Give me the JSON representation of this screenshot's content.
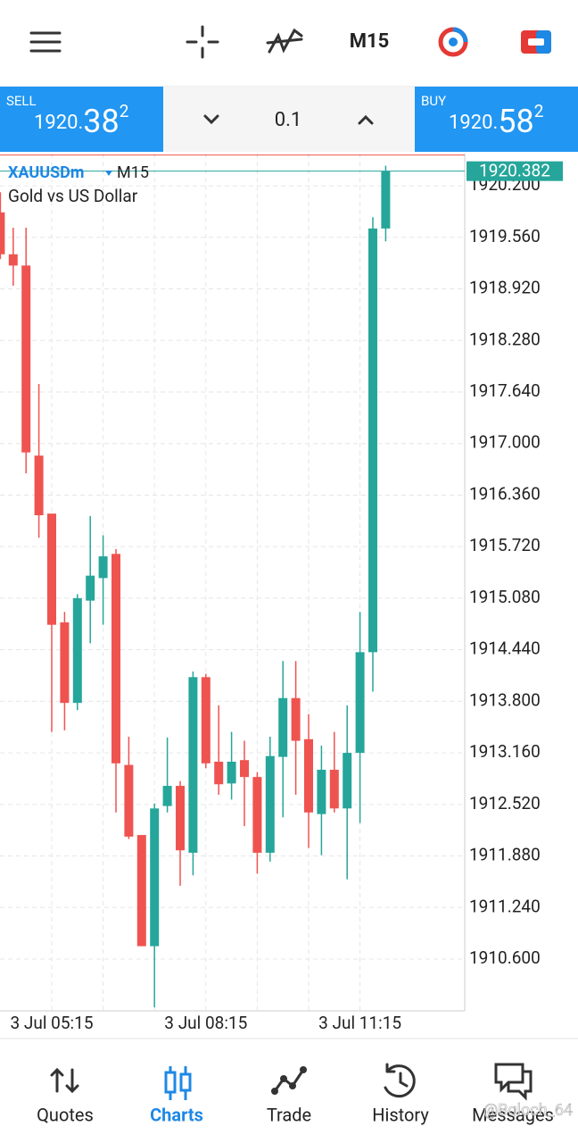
{
  "header": {
    "timeframe": "M15"
  },
  "trade_bar": {
    "sell": {
      "label": "SELL",
      "price_head": "1920.",
      "price_big": "38",
      "price_sup": "2"
    },
    "volume": "0.1",
    "buy": {
      "label": "BUY",
      "price_head": "1920.",
      "price_big": "58",
      "price_sup": "2"
    }
  },
  "chart_data": {
    "type": "candlestick",
    "symbol": "XAUUSDm",
    "timeframe": "M15",
    "description": "Gold vs US Dollar",
    "categories": [
      null,
      null,
      null,
      null,
      "3 Jul 05:15",
      null,
      null,
      null,
      null,
      null,
      null,
      null,
      null,
      null,
      null,
      null,
      "3 Jul 08:15",
      null,
      null,
      null,
      null,
      null,
      null,
      null,
      null,
      null,
      null,
      null,
      "3 Jul 11:15",
      null,
      null
    ],
    "open": [
      1919.87,
      1919.35,
      1919.21,
      1916.85,
      1916.13,
      1914.78,
      1913.78,
      1915.05,
      1915.33,
      1915.63,
      1913.01,
      1912.14,
      1910.76,
      1912.5,
      1912.75,
      1911.92,
      1914.1,
      1913.05,
      1912.78,
      1913.07,
      1912.86,
      1911.92,
      1913.11,
      1913.84,
      1913.33,
      1912.4,
      1912.95,
      1912.47,
      1913.16,
      1914.41,
      1919.67
    ],
    "high": [
      1920.12,
      1919.68,
      1919.68,
      1917.74,
      1916.13,
      1914.91,
      1915.13,
      1916.1,
      1915.86,
      1915.69,
      1913.36,
      1912.14,
      1912.53,
      1913.35,
      1912.81,
      1914.17,
      1914.14,
      1913.75,
      1913.42,
      1913.31,
      1912.92,
      1913.36,
      1914.3,
      1914.3,
      1913.64,
      1913.25,
      1913.42,
      1913.75,
      1914.91,
      1919.81,
      1920.45
    ],
    "low": [
      1919.29,
      1918.96,
      1916.63,
      1915.83,
      1913.42,
      1913.44,
      1913.69,
      1914.52,
      1914.75,
      1912.42,
      1912.09,
      1910.76,
      1910.0,
      1912.42,
      1911.51,
      1911.64,
      1912.97,
      1912.64,
      1912.58,
      1912.25,
      1911.66,
      1911.81,
      1912.36,
      1912.64,
      1911.98,
      1911.89,
      1912.42,
      1911.59,
      1912.29,
      1913.92,
      1919.51
    ],
    "close": [
      1919.35,
      1919.21,
      1916.89,
      1916.11,
      1914.75,
      1913.78,
      1915.08,
      1915.36,
      1915.6,
      1913.03,
      1912.12,
      1910.76,
      1912.47,
      1912.75,
      1911.95,
      1914.1,
      1913.03,
      1912.77,
      1913.05,
      1912.86,
      1911.92,
      1913.12,
      1913.84,
      1913.31,
      1912.42,
      1912.95,
      1912.47,
      1913.16,
      1914.41,
      1919.67,
      1920.382
    ],
    "up_color": "#26a69a",
    "down_color": "#ef5350",
    "bid": 1920.382,
    "bid_color": "#26a69a",
    "ask": 1920.582,
    "ask_color": "#ef5350",
    "ylim": [
      1909.957,
      1920.6
    ],
    "yticks": [
      {
        "value": 1910.6,
        "label": "1910.600"
      },
      {
        "value": 1911.24,
        "label": "1911.240"
      },
      {
        "value": 1911.88,
        "label": "1911.880"
      },
      {
        "value": 1912.52,
        "label": "1912.520"
      },
      {
        "value": 1913.16,
        "label": "1913.160"
      },
      {
        "value": 1913.8,
        "label": "1913.800"
      },
      {
        "value": 1914.44,
        "label": "1914.440"
      },
      {
        "value": 1915.08,
        "label": "1915.080"
      },
      {
        "value": 1915.72,
        "label": "1915.720"
      },
      {
        "value": 1916.36,
        "label": "1916.360"
      },
      {
        "value": 1917,
        "label": "1917.000"
      },
      {
        "value": 1917.64,
        "label": "1917.640"
      },
      {
        "value": 1918.28,
        "label": "1918.280"
      },
      {
        "value": 1918.92,
        "label": "1918.920"
      },
      {
        "value": 1919.56,
        "label": "1919.560"
      },
      {
        "value": 1920.2,
        "label": "1920.200"
      }
    ],
    "grid": true
  },
  "nav": {
    "items": [
      "Quotes",
      "Charts",
      "Trade",
      "History",
      "Messages"
    ],
    "active": 1
  },
  "watermark": "@Bqloch_64"
}
